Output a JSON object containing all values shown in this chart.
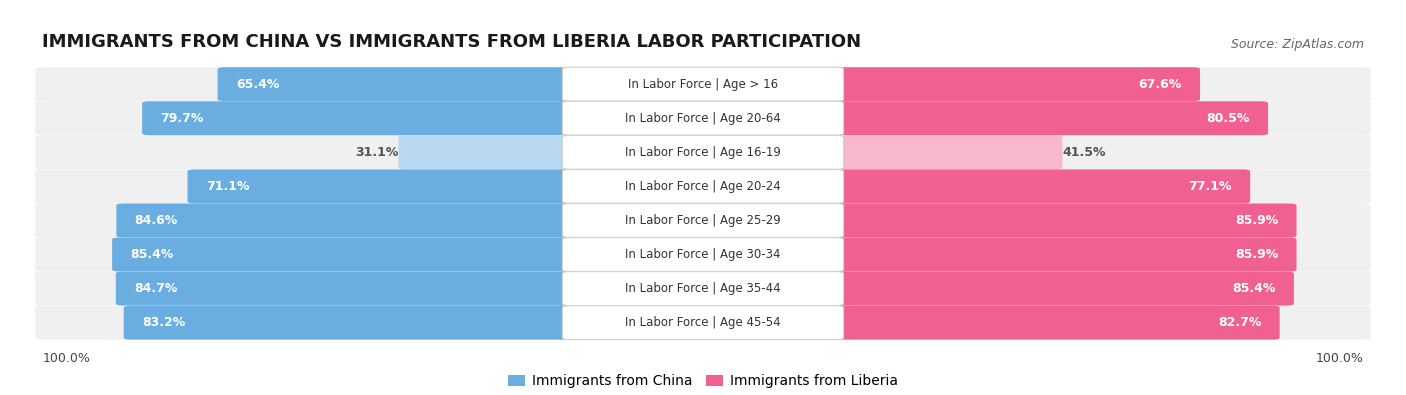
{
  "title": "IMMIGRANTS FROM CHINA VS IMMIGRANTS FROM LIBERIA LABOR PARTICIPATION",
  "source": "Source: ZipAtlas.com",
  "categories": [
    "In Labor Force | Age > 16",
    "In Labor Force | Age 20-64",
    "In Labor Force | Age 16-19",
    "In Labor Force | Age 20-24",
    "In Labor Force | Age 25-29",
    "In Labor Force | Age 30-34",
    "In Labor Force | Age 35-44",
    "In Labor Force | Age 45-54"
  ],
  "china_values": [
    65.4,
    79.7,
    31.1,
    71.1,
    84.6,
    85.4,
    84.7,
    83.2
  ],
  "liberia_values": [
    67.6,
    80.5,
    41.5,
    77.1,
    85.9,
    85.9,
    85.4,
    82.7
  ],
  "china_color": "#6aade0",
  "china_color_light": "#b8d8f0",
  "liberia_color": "#f06090",
  "liberia_color_light": "#f8b8cc",
  "row_bg_color": "#f0f0f0",
  "label_china": "Immigrants from China",
  "label_liberia": "Immigrants from Liberia",
  "title_fontsize": 13,
  "source_fontsize": 9,
  "bar_label_fontsize": 9,
  "category_fontsize": 8.5,
  "legend_fontsize": 10,
  "bottom_label": "100.0%"
}
